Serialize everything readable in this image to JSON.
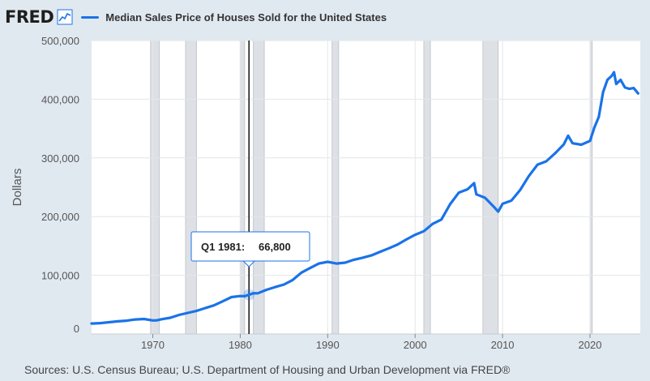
{
  "header": {
    "logo": "FRED",
    "series_label": "Median Sales Price of Houses Sold for the United States"
  },
  "tooltip": {
    "date": "Q1 1981:",
    "value": "66,800",
    "x_value": 1981.0
  },
  "source": "Sources: U.S. Census Bureau; U.S. Department of Housing and Urban Development via FRED®",
  "colors": {
    "line": "#1a73e8",
    "recession": "#dde1e6",
    "background": "#e1e9f0"
  },
  "chart_data": {
    "type": "line",
    "title": "Median Sales Price of Houses Sold for the United States",
    "xlabel": "",
    "ylabel": "Dollars",
    "xlim": [
      1963.0,
      2025.75
    ],
    "ylim": [
      0,
      500000
    ],
    "yticks": [
      0,
      100000,
      200000,
      300000,
      400000,
      500000
    ],
    "ytick_labels": [
      "0",
      "100,000",
      "200,000",
      "300,000",
      "400,000",
      "500,000"
    ],
    "xticks": [
      1970,
      1980,
      1990,
      2000,
      2010,
      2020
    ],
    "xtick_labels": [
      "1970",
      "1980",
      "1990",
      "2000",
      "2010",
      "2020"
    ],
    "grid": true,
    "recessions": [
      [
        1969.75,
        1970.75
      ],
      [
        1973.75,
        1975.0
      ],
      [
        1980.0,
        1980.5
      ],
      [
        1981.5,
        1982.75
      ],
      [
        1990.5,
        1991.25
      ],
      [
        2001.0,
        2001.75
      ],
      [
        2007.75,
        2009.5
      ],
      [
        2020.0,
        2020.25
      ]
    ],
    "series": [
      {
        "name": "Median Sales Price of Houses Sold for the United States",
        "x": [
          1963.0,
          1964.0,
          1965.0,
          1966.0,
          1967.0,
          1968.0,
          1969.0,
          1970.0,
          1970.5,
          1971.0,
          1972.0,
          1973.0,
          1974.0,
          1975.0,
          1976.0,
          1977.0,
          1978.0,
          1979.0,
          1980.0,
          1980.5,
          1981.0,
          1981.5,
          1982.0,
          1983.0,
          1984.0,
          1985.0,
          1986.0,
          1987.0,
          1988.0,
          1989.0,
          1990.0,
          1991.0,
          1992.0,
          1993.0,
          1994.0,
          1995.0,
          1996.0,
          1997.0,
          1998.0,
          1999.0,
          2000.0,
          2001.0,
          2002.0,
          2003.0,
          2004.0,
          2005.0,
          2006.0,
          2006.75,
          2007.0,
          2008.0,
          2009.0,
          2009.5,
          2010.0,
          2011.0,
          2012.0,
          2013.0,
          2014.0,
          2015.0,
          2016.0,
          2017.0,
          2017.5,
          2018.0,
          2019.0,
          2020.0,
          2020.5,
          2021.0,
          2021.5,
          2022.0,
          2022.5,
          2022.75,
          2023.0,
          2023.5,
          2024.0,
          2024.5,
          2025.0,
          2025.5
        ],
        "values": [
          17800,
          18500,
          20000,
          21500,
          22700,
          24700,
          25600,
          23000,
          23400,
          25200,
          27600,
          32500,
          35900,
          39300,
          44200,
          48800,
          55700,
          62900,
          64600,
          64300,
          66800,
          69500,
          69300,
          75300,
          80000,
          84300,
          92000,
          104500,
          112500,
          120000,
          122900,
          120000,
          121500,
          126500,
          130000,
          133900,
          140000,
          146000,
          152500,
          161000,
          169000,
          175200,
          187600,
          195000,
          221000,
          240900,
          246500,
          257000,
          238000,
          232100,
          216700,
          208400,
          221800,
          227200,
          245200,
          268900,
          288500,
          294200,
          307800,
          323100,
          337900,
          325000,
          322500,
          329000,
          352000,
          369800,
          412000,
          433100,
          440000,
          446000,
          426000,
          433000,
          420000,
          417700,
          419000,
          410000
        ]
      }
    ]
  }
}
